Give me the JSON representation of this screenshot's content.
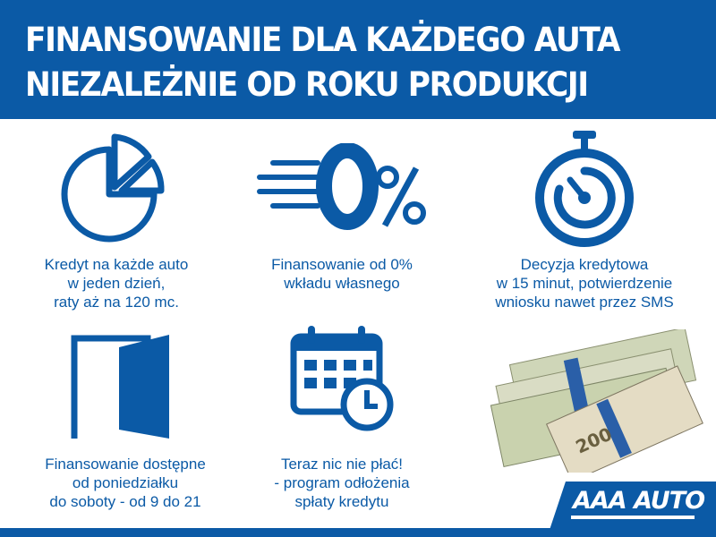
{
  "header": {
    "title_line1": "FINANSOWANIE DLA KAŻDEGO AUTA",
    "title_line2": "NIEZALEŻNIE OD ROKU PRODUKCJI"
  },
  "features": [
    {
      "icon": "pie-chart-icon",
      "lines": [
        "Kredyt na każde auto",
        "w jeden dzień,",
        "raty aż na 120 mc."
      ]
    },
    {
      "icon": "zero-percent-icon",
      "lines": [
        "Finansowanie od 0%",
        "wkładu własnego"
      ]
    },
    {
      "icon": "stopwatch-icon",
      "lines": [
        "Decyzja kredytowa",
        "w 15 minut, potwierdzenie",
        "wniosku nawet przez SMS"
      ]
    },
    {
      "icon": "open-door-icon",
      "lines": [
        "Finansowanie dostępne",
        "od poniedziałku",
        "do soboty - od 9 do 21"
      ]
    },
    {
      "icon": "calendar-clock-icon",
      "lines": [
        "Teraz nic nie płać!",
        "- program odłożenia",
        "spłaty kredytu"
      ]
    }
  ],
  "money_image": {
    "icon": "banknote-stack-icon",
    "note_value": "200"
  },
  "logo": {
    "text": "AAA AUTO"
  },
  "colors": {
    "brand_blue": "#0b5aa6",
    "white": "#ffffff"
  }
}
